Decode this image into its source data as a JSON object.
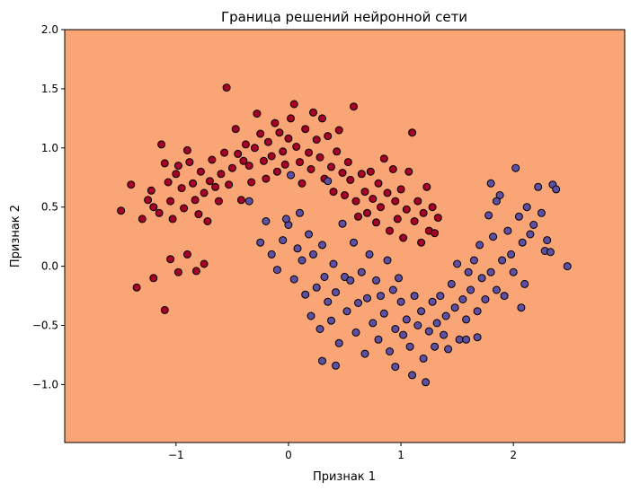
{
  "chart_data": {
    "type": "scatter",
    "title": "Граница решений нейронной сети",
    "xlabel": "Признак 1",
    "ylabel": "Признак 2",
    "xlim": [
      -1.99,
      2.99
    ],
    "ylim": [
      -1.49,
      2.0
    ],
    "x_ticks": [
      -1,
      0,
      1,
      2
    ],
    "y_ticks": [
      -1.0,
      -0.5,
      0.0,
      0.5,
      1.0,
      1.5,
      2.0
    ],
    "x_tick_labels": [
      "−1",
      "0",
      "1",
      "2"
    ],
    "y_tick_labels": [
      "−1.0",
      "−0.5",
      "0.0",
      "0.5",
      "1.0",
      "1.5",
      "2.0"
    ],
    "grid": false,
    "legend": "none",
    "background_region_color": "#F9A576",
    "series": [
      {
        "color": "#A50026",
        "points": [
          [
            -1.49,
            0.47
          ],
          [
            -1.4,
            0.69
          ],
          [
            -1.3,
            0.4
          ],
          [
            -1.25,
            0.56
          ],
          [
            -1.22,
            0.64
          ],
          [
            -1.2,
            0.5
          ],
          [
            -1.15,
            0.45
          ],
          [
            -1.13,
            1.03
          ],
          [
            -1.1,
            0.87
          ],
          [
            -1.07,
            0.71
          ],
          [
            -1.05,
            0.55
          ],
          [
            -1.03,
            0.4
          ],
          [
            -1.0,
            0.78
          ],
          [
            -0.98,
            0.85
          ],
          [
            -0.95,
            0.66
          ],
          [
            -0.93,
            0.49
          ],
          [
            -0.9,
            0.98
          ],
          [
            -0.88,
            0.88
          ],
          [
            -0.85,
            0.7
          ],
          [
            -0.83,
            0.56
          ],
          [
            -0.8,
            0.44
          ],
          [
            -0.78,
            0.8
          ],
          [
            -0.75,
            0.62
          ],
          [
            -0.72,
            0.38
          ],
          [
            -0.7,
            0.72
          ],
          [
            -0.68,
            0.9
          ],
          [
            -0.65,
            0.67
          ],
          [
            -0.62,
            0.55
          ],
          [
            -0.6,
            0.78
          ],
          [
            -0.57,
            0.96
          ],
          [
            -0.55,
            1.51
          ],
          [
            -0.53,
            0.69
          ],
          [
            -0.5,
            0.83
          ],
          [
            -0.47,
            1.16
          ],
          [
            -0.45,
            0.95
          ],
          [
            -0.42,
            0.56
          ],
          [
            -0.4,
            0.89
          ],
          [
            -0.38,
            1.03
          ],
          [
            -0.35,
            0.85
          ],
          [
            -0.33,
            0.71
          ],
          [
            -0.3,
            1.0
          ],
          [
            -0.28,
            1.29
          ],
          [
            -0.25,
            1.12
          ],
          [
            -0.22,
            0.89
          ],
          [
            -0.2,
            0.74
          ],
          [
            -0.18,
            1.05
          ],
          [
            -0.15,
            0.93
          ],
          [
            -0.12,
            1.21
          ],
          [
            -0.1,
            0.8
          ],
          [
            -0.08,
            1.13
          ],
          [
            -0.05,
            0.97
          ],
          [
            -0.03,
            0.86
          ],
          [
            0.0,
            1.08
          ],
          [
            0.02,
            1.25
          ],
          [
            0.05,
            1.37
          ],
          [
            0.07,
            1.01
          ],
          [
            0.1,
            0.88
          ],
          [
            0.12,
            0.7
          ],
          [
            0.15,
            1.16
          ],
          [
            0.18,
            0.96
          ],
          [
            0.2,
            0.82
          ],
          [
            0.22,
            1.3
          ],
          [
            0.25,
            1.07
          ],
          [
            0.28,
            0.92
          ],
          [
            0.3,
            1.25
          ],
          [
            0.32,
            0.74
          ],
          [
            0.35,
            1.1
          ],
          [
            0.38,
            0.84
          ],
          [
            0.4,
            0.63
          ],
          [
            0.43,
            0.97
          ],
          [
            0.45,
            1.15
          ],
          [
            0.48,
            0.79
          ],
          [
            0.5,
            0.6
          ],
          [
            0.53,
            0.88
          ],
          [
            0.55,
            0.73
          ],
          [
            0.58,
            1.35
          ],
          [
            0.6,
            0.55
          ],
          [
            0.62,
            0.42
          ],
          [
            0.65,
            0.78
          ],
          [
            0.68,
            0.63
          ],
          [
            0.7,
            0.45
          ],
          [
            0.73,
            0.8
          ],
          [
            0.75,
            0.57
          ],
          [
            0.78,
            0.37
          ],
          [
            0.8,
            0.7
          ],
          [
            0.82,
            0.5
          ],
          [
            0.85,
            0.91
          ],
          [
            0.88,
            0.62
          ],
          [
            0.9,
            0.3
          ],
          [
            0.93,
            0.82
          ],
          [
            0.95,
            0.55
          ],
          [
            0.97,
            0.4
          ],
          [
            1.0,
            0.65
          ],
          [
            1.02,
            0.24
          ],
          [
            1.05,
            0.48
          ],
          [
            1.07,
            0.8
          ],
          [
            1.1,
            1.13
          ],
          [
            1.12,
            0.38
          ],
          [
            1.15,
            0.55
          ],
          [
            1.18,
            0.2
          ],
          [
            1.2,
            0.45
          ],
          [
            1.23,
            0.67
          ],
          [
            1.25,
            0.3
          ],
          [
            1.28,
            0.5
          ],
          [
            1.3,
            0.28
          ],
          [
            1.33,
            0.41
          ],
          [
            -1.35,
            -0.18
          ],
          [
            -1.2,
            -0.1
          ],
          [
            -1.1,
            -0.37
          ],
          [
            -1.05,
            0.06
          ],
          [
            -0.98,
            -0.05
          ],
          [
            -0.9,
            0.1
          ],
          [
            -0.82,
            -0.04
          ],
          [
            -0.75,
            0.02
          ]
        ]
      },
      {
        "color": "#5E4FA2",
        "points": [
          [
            -0.35,
            0.55
          ],
          [
            -0.25,
            0.2
          ],
          [
            -0.2,
            0.38
          ],
          [
            -0.15,
            0.1
          ],
          [
            -0.1,
            -0.03
          ],
          [
            -0.05,
            0.22
          ],
          [
            0.0,
            0.35
          ],
          [
            0.02,
            0.77
          ],
          [
            0.05,
            -0.11
          ],
          [
            0.08,
            0.15
          ],
          [
            0.1,
            0.45
          ],
          [
            0.12,
            0.05
          ],
          [
            0.15,
            -0.24
          ],
          [
            0.18,
            0.27
          ],
          [
            0.2,
            -0.42
          ],
          [
            0.22,
            0.1
          ],
          [
            0.25,
            -0.18
          ],
          [
            0.28,
            -0.53
          ],
          [
            0.3,
            0.18
          ],
          [
            0.32,
            -0.09
          ],
          [
            0.35,
            -0.3
          ],
          [
            0.38,
            -0.46
          ],
          [
            0.4,
            0.02
          ],
          [
            0.42,
            -0.22
          ],
          [
            0.45,
            -0.65
          ],
          [
            0.48,
            0.36
          ],
          [
            0.5,
            -0.09
          ],
          [
            0.52,
            -0.38
          ],
          [
            0.55,
            -0.12
          ],
          [
            0.58,
            0.2
          ],
          [
            0.6,
            -0.56
          ],
          [
            0.62,
            -0.31
          ],
          [
            0.65,
            -0.05
          ],
          [
            0.68,
            -0.74
          ],
          [
            0.7,
            -0.27
          ],
          [
            0.72,
            0.1
          ],
          [
            0.75,
            -0.48
          ],
          [
            0.78,
            -0.12
          ],
          [
            0.8,
            -0.62
          ],
          [
            0.82,
            -0.25
          ],
          [
            0.85,
            -0.4
          ],
          [
            0.88,
            0.05
          ],
          [
            0.9,
            -0.72
          ],
          [
            0.93,
            -0.2
          ],
          [
            0.95,
            -0.53
          ],
          [
            0.98,
            -0.1
          ],
          [
            1.0,
            -0.3
          ],
          [
            1.02,
            -0.58
          ],
          [
            1.05,
            -0.45
          ],
          [
            1.08,
            -0.68
          ],
          [
            1.1,
            -0.92
          ],
          [
            1.12,
            -0.25
          ],
          [
            1.15,
            -0.5
          ],
          [
            1.18,
            -0.38
          ],
          [
            1.2,
            -0.78
          ],
          [
            1.22,
            -0.98
          ],
          [
            1.25,
            -0.55
          ],
          [
            1.28,
            -0.3
          ],
          [
            1.3,
            -0.68
          ],
          [
            1.32,
            -0.48
          ],
          [
            1.35,
            -0.25
          ],
          [
            1.38,
            -0.58
          ],
          [
            1.4,
            -0.42
          ],
          [
            1.42,
            -0.7
          ],
          [
            1.45,
            -0.15
          ],
          [
            1.48,
            -0.35
          ],
          [
            1.5,
            0.02
          ],
          [
            1.52,
            -0.62
          ],
          [
            1.55,
            -0.28
          ],
          [
            1.58,
            -0.45
          ],
          [
            1.6,
            -0.05
          ],
          [
            1.62,
            -0.2
          ],
          [
            1.65,
            0.05
          ],
          [
            1.68,
            -0.38
          ],
          [
            1.7,
            0.18
          ],
          [
            1.72,
            -0.1
          ],
          [
            1.75,
            -0.28
          ],
          [
            1.78,
            0.43
          ],
          [
            1.8,
            -0.05
          ],
          [
            1.82,
            0.25
          ],
          [
            1.85,
            -0.2
          ],
          [
            1.88,
            0.6
          ],
          [
            1.9,
            0.05
          ],
          [
            1.92,
            -0.25
          ],
          [
            1.95,
            0.3
          ],
          [
            1.98,
            0.1
          ],
          [
            2.0,
            -0.05
          ],
          [
            2.02,
            0.83
          ],
          [
            2.05,
            0.42
          ],
          [
            2.08,
            0.2
          ],
          [
            2.1,
            -0.15
          ],
          [
            2.12,
            0.5
          ],
          [
            2.15,
            0.27
          ],
          [
            2.18,
            0.35
          ],
          [
            2.22,
            0.67
          ],
          [
            2.25,
            0.45
          ],
          [
            2.28,
            0.13
          ],
          [
            2.3,
            0.22
          ],
          [
            2.33,
            0.12
          ],
          [
            2.35,
            0.69
          ],
          [
            2.38,
            0.65
          ],
          [
            2.48,
            0.0
          ],
          [
            1.8,
            0.7
          ],
          [
            1.85,
            0.55
          ],
          [
            0.95,
            -0.85
          ],
          [
            0.42,
            -0.84
          ],
          [
            1.68,
            -0.6
          ],
          [
            0.35,
            0.72
          ],
          [
            0.3,
            -0.8
          ],
          [
            -0.02,
            0.4
          ],
          [
            1.58,
            -0.62
          ],
          [
            2.07,
            -0.35
          ]
        ]
      }
    ]
  }
}
